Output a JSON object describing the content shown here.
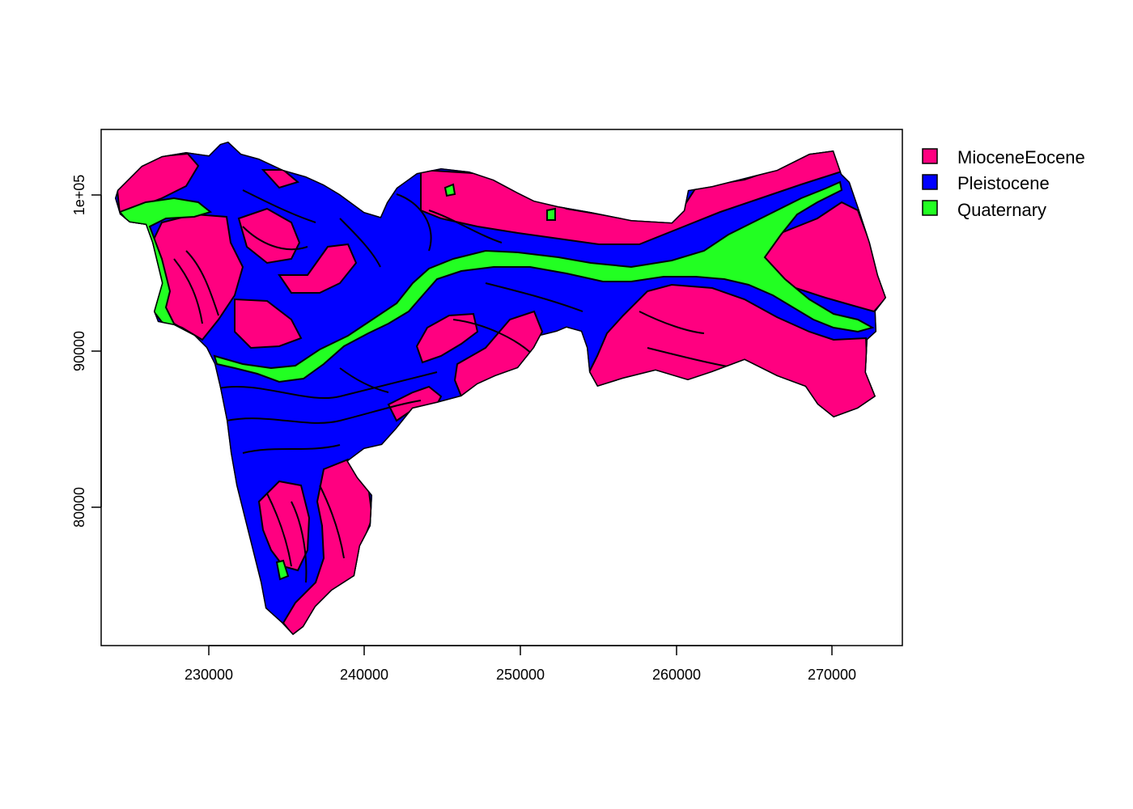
{
  "map": {
    "type": "choropleth",
    "x_ticks": [
      "230000",
      "240000",
      "250000",
      "260000",
      "270000"
    ],
    "y_ticks": [
      "80000",
      "90000",
      "1e+05"
    ],
    "legend": {
      "placement": "top-right",
      "entries": [
        {
          "label": "MioceneEocene",
          "color": "#ff0080"
        },
        {
          "label": "Pleistocene",
          "color": "#0000ff"
        },
        {
          "label": "Quaternary",
          "color": "#22ff22"
        }
      ]
    }
  }
}
